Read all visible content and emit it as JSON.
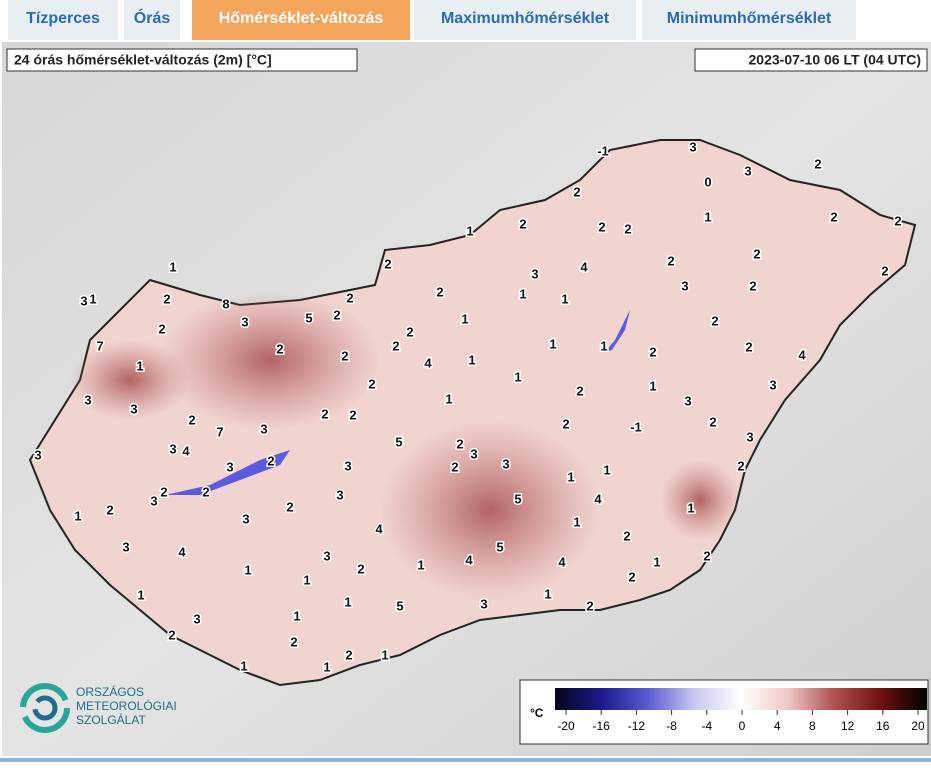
{
  "tabs": [
    "Tízperces",
    "Órás",
    "Hőmérséklet-változás",
    "Maximumhőmérséklet",
    "Minimumhőmérséklet"
  ],
  "active_tab": 2,
  "map": {
    "title": "24 órás hőmérséklet-változás (2m) [°C]",
    "timestamp": "2023-07-10 06 LT (04 UTC)",
    "stations": [
      -1,
      3,
      0,
      3,
      2,
      2,
      2,
      2,
      1,
      2,
      2,
      1,
      2,
      2,
      1,
      3,
      4,
      2,
      2,
      2,
      3,
      1,
      2,
      8,
      3,
      5,
      2,
      2,
      2,
      1,
      1,
      3,
      2,
      2,
      1,
      2,
      7,
      2,
      2,
      2,
      2,
      4,
      1,
      1,
      1,
      2,
      2,
      4,
      1,
      2,
      1,
      2,
      1,
      3,
      3,
      3,
      3,
      2,
      2,
      1,
      7,
      3,
      2,
      -1,
      2,
      3,
      2,
      4,
      3,
      5,
      2,
      3,
      2,
      3,
      3,
      3,
      3,
      1,
      1,
      2,
      2,
      3,
      2,
      2,
      3,
      2,
      5,
      4,
      1,
      1,
      2,
      3,
      4,
      1,
      2,
      3,
      4,
      3,
      5,
      4,
      4,
      1,
      2,
      1,
      2,
      1,
      1,
      2,
      1,
      1,
      5,
      3,
      1,
      2,
      3,
      1,
      2,
      2,
      2,
      1,
      1,
      1
    ]
  },
  "logo": [
    "ORSZÁGOS",
    "METEOROLÓGIAI",
    "SZOLGÁLAT"
  ],
  "legend": {
    "unit": "°C",
    "lim": [
      -20,
      20
    ],
    "ticks": [
      -20,
      -16,
      -12,
      -8,
      -4,
      0,
      4,
      8,
      12,
      16,
      20
    ],
    "colors": [
      "#05051a",
      "#1a1a8c",
      "#5a5ad0",
      "#c8c8f0",
      "#ffffff",
      "#f0c8c8",
      "#b05050",
      "#701010",
      "#000000"
    ]
  }
}
